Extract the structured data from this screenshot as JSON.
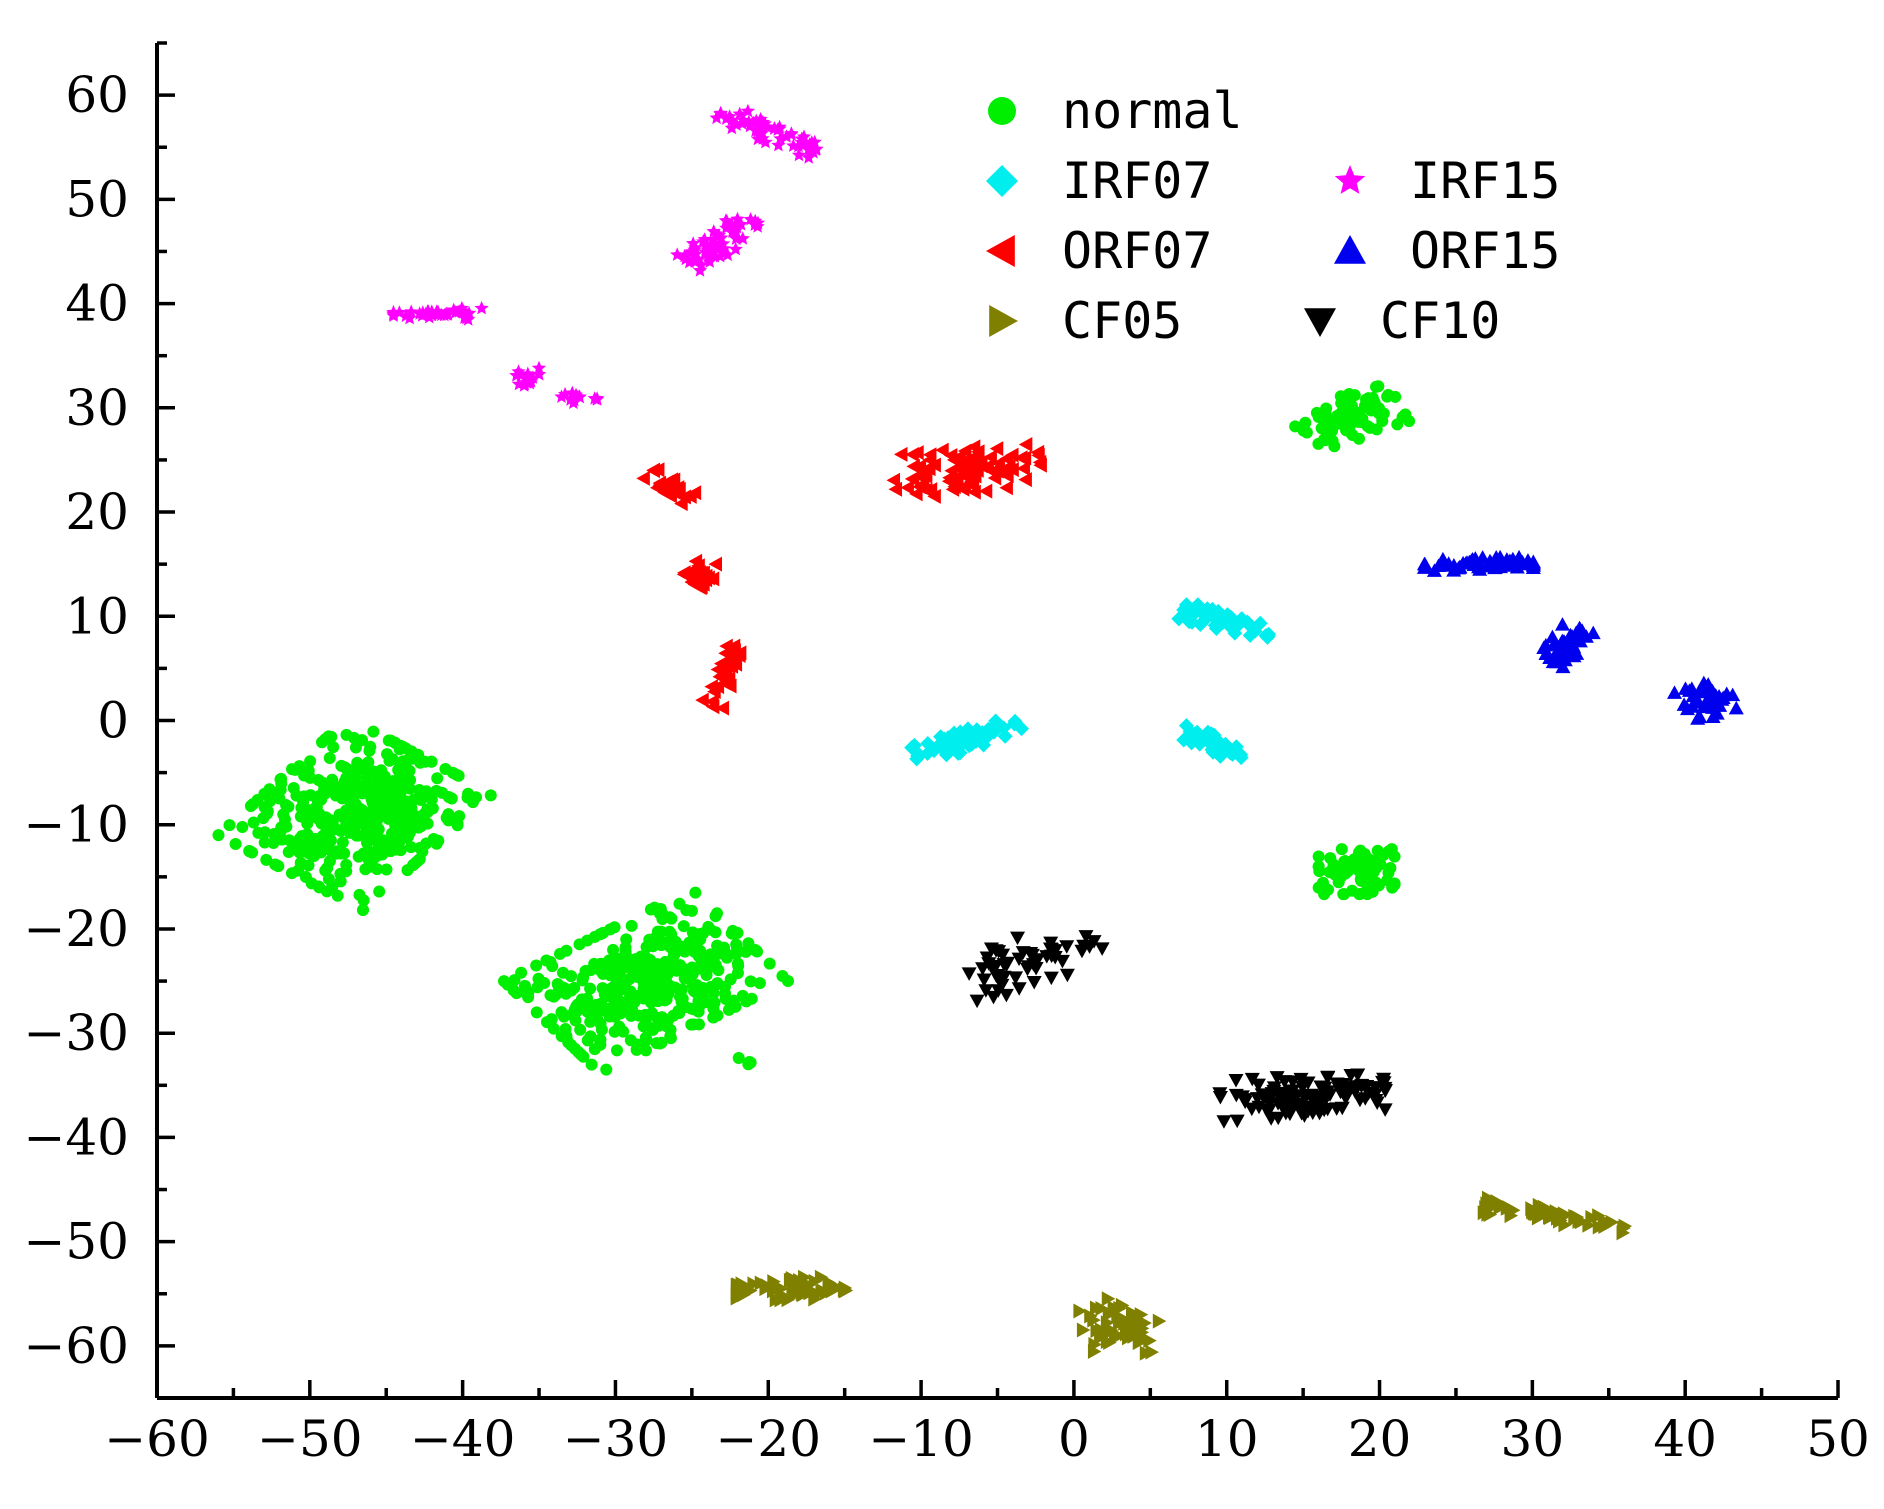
{
  "chart_data": {
    "type": "scatter",
    "title": "",
    "xlabel": "",
    "ylabel": "",
    "xlim": [
      -60,
      50
    ],
    "ylim": [
      -65,
      65
    ],
    "xticks": [
      -60,
      -50,
      -40,
      -30,
      -20,
      -10,
      0,
      10,
      20,
      30,
      40,
      50
    ],
    "yticks": [
      -60,
      -50,
      -40,
      -30,
      -20,
      -10,
      0,
      10,
      20,
      30,
      40,
      50,
      60
    ],
    "legend_position": "top-center",
    "series": [
      {
        "name": "normal",
        "marker": "circle",
        "color": "#00ee00",
        "clusters": [
          {
            "center": [
              -47,
              -9
            ],
            "spread": [
              5.5,
              6.5
            ],
            "angle": -0.65,
            "count": 420
          },
          {
            "center": [
              -28,
              -25
            ],
            "spread": [
              5,
              7
            ],
            "angle": -0.95,
            "count": 400
          },
          {
            "center": [
              -21.5,
              -32.5
            ],
            "spread": [
              0.4,
              0.5
            ],
            "angle": 0,
            "count": 4
          },
          {
            "center": [
              18,
              29
            ],
            "spread": [
              2,
              3.3
            ],
            "angle": -1.2,
            "count": 90
          },
          {
            "center": [
              18.5,
              -14.5
            ],
            "spread": [
              2.3,
              2
            ],
            "angle": 0,
            "count": 80
          }
        ]
      },
      {
        "name": "IRF07",
        "marker": "diamond",
        "color": "#00eeee",
        "clusters": [
          {
            "center": [
              -7,
              -1.8
            ],
            "spread": [
              3.5,
              0.9
            ],
            "angle": 0.45,
            "count": 60
          },
          {
            "center": [
              10,
              9.5
            ],
            "spread": [
              2.8,
              0.8
            ],
            "angle": -0.35,
            "count": 50
          },
          {
            "center": [
              9,
              -2.2
            ],
            "spread": [
              2.2,
              0.7
            ],
            "angle": -0.6,
            "count": 40
          }
        ]
      },
      {
        "name": "IRF15",
        "marker": "star",
        "color": "#ff00ff",
        "clusters": [
          {
            "center": [
              -20,
              56.5
            ],
            "spread": [
              3.3,
              0.9
            ],
            "angle": -0.55,
            "count": 60
          },
          {
            "center": [
              -23.5,
              45.5
            ],
            "spread": [
              3.3,
              1.1
            ],
            "angle": 0.8,
            "count": 60
          },
          {
            "center": [
              -41.5,
              39
            ],
            "spread": [
              2.8,
              0.5
            ],
            "angle": 0,
            "count": 35
          },
          {
            "center": [
              -36,
              32.5
            ],
            "spread": [
              1,
              1.2
            ],
            "angle": 0,
            "count": 15
          },
          {
            "center": [
              -32.5,
              31
            ],
            "spread": [
              1.2,
              0.5
            ],
            "angle": 0,
            "count": 12
          }
        ]
      },
      {
        "name": "ORF07",
        "marker": "triangle-left",
        "color": "#ff0000",
        "clusters": [
          {
            "center": [
              -7,
              24
            ],
            "spread": [
              4.5,
              2
            ],
            "angle": 0.15,
            "count": 90
          },
          {
            "center": [
              -26.5,
              22.5
            ],
            "spread": [
              1.6,
              0.7
            ],
            "angle": -0.7,
            "count": 25
          },
          {
            "center": [
              -24.5,
              14
            ],
            "spread": [
              1,
              1.4
            ],
            "angle": 0,
            "count": 25
          },
          {
            "center": [
              -23,
              4.5
            ],
            "spread": [
              0.7,
              3
            ],
            "angle": -0.2,
            "count": 30
          }
        ]
      },
      {
        "name": "ORF15",
        "marker": "triangle-up",
        "color": "#0000ee",
        "clusters": [
          {
            "center": [
              26.5,
              15
            ],
            "spread": [
              3.3,
              0.6
            ],
            "angle": 0,
            "count": 60
          },
          {
            "center": [
              32,
              7
            ],
            "spread": [
              1,
              2
            ],
            "angle": -0.5,
            "count": 35
          },
          {
            "center": [
              41.5,
              2
            ],
            "spread": [
              1.5,
              1.5
            ],
            "angle": 0.5,
            "count": 40
          }
        ]
      },
      {
        "name": "CF05",
        "marker": "triangle-right",
        "color": "#808000",
        "clusters": [
          {
            "center": [
              -18.5,
              -54.5
            ],
            "spread": [
              3.3,
              1
            ],
            "angle": 0,
            "count": 60
          },
          {
            "center": [
              3,
              -58
            ],
            "spread": [
              2.5,
              2.5
            ],
            "angle": 0,
            "count": 55
          },
          {
            "center": [
              31.5,
              -47.5
            ],
            "spread": [
              4.3,
              0.7
            ],
            "angle": -0.2,
            "count": 60
          }
        ]
      },
      {
        "name": "CF10",
        "marker": "triangle-down",
        "color": "#000000",
        "clusters": [
          {
            "center": [
              -3,
              -23
            ],
            "spread": [
              4.5,
              2.2
            ],
            "angle": 0.45,
            "count": 55
          },
          {
            "center": [
              15,
              -36
            ],
            "spread": [
              5,
              1.8
            ],
            "angle": 0.1,
            "count": 110
          }
        ]
      }
    ]
  }
}
